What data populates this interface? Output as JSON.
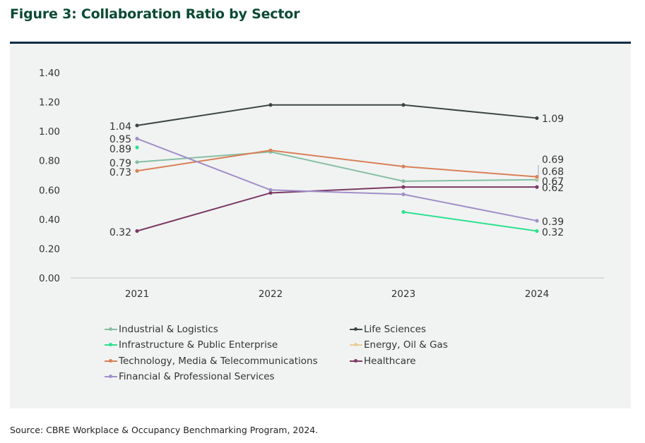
{
  "figure_title": "Figure 3: Collaboration Ratio by Sector",
  "source": "Source: CBRE Workplace & Occupancy Benchmarking Program, 2024.",
  "colors": {
    "Industrial & Logistics": "#86bfa4",
    "Life Sciences": "#3d4644",
    "Infrastructure & Public Enterprise": "#2ee08f",
    "Energy, Oil & Gas": "#e8cd97",
    "Technology, Media & Telecommunications": "#d98057",
    "Healthcare": "#7b3965",
    "Financial & Professional Services": "#a18fc9"
  },
  "chart_data": {
    "type": "line",
    "title": "Collaboration Ratio by Sector",
    "xlabel": "",
    "ylabel": "",
    "categories": [
      "2021",
      "2022",
      "2023",
      "2024"
    ],
    "ylim": [
      0,
      1.4
    ],
    "yticks": [
      "0.00",
      "0.20",
      "0.40",
      "0.60",
      "0.80",
      "1.00",
      "1.20",
      "1.40"
    ],
    "grid": false,
    "legend_position": "bottom",
    "series": [
      {
        "name": "Industrial & Logistics",
        "values": [
          0.79,
          0.86,
          0.66,
          0.67
        ]
      },
      {
        "name": "Life Sciences",
        "values": [
          1.04,
          1.18,
          1.18,
          1.09
        ]
      },
      {
        "name": "Infrastructure & Public Enterprise",
        "values": [
          0.89,
          null,
          0.45,
          0.32
        ]
      },
      {
        "name": "Energy, Oil & Gas",
        "values": [
          null,
          null,
          null,
          0.68
        ]
      },
      {
        "name": "Technology, Media & Telecommunications",
        "values": [
          0.73,
          0.87,
          0.76,
          0.69
        ]
      },
      {
        "name": "Healthcare",
        "values": [
          0.32,
          0.58,
          0.62,
          0.62
        ]
      },
      {
        "name": "Financial & Professional Services",
        "values": [
          0.95,
          0.6,
          0.57,
          0.39
        ]
      }
    ],
    "data_labels": [
      {
        "series": "Life Sciences",
        "x": "2021",
        "text": "1.04"
      },
      {
        "series": "Financial & Professional Services",
        "x": "2021",
        "text": "0.95"
      },
      {
        "series": "Infrastructure & Public Enterprise",
        "x": "2021",
        "text": "0.89"
      },
      {
        "series": "Industrial & Logistics",
        "x": "2021",
        "text": "0.79"
      },
      {
        "series": "Technology, Media & Telecommunications",
        "x": "2021",
        "text": "0.73"
      },
      {
        "series": "Healthcare",
        "x": "2021",
        "text": "0.32"
      },
      {
        "series": "Life Sciences",
        "x": "2024",
        "text": "1.09"
      },
      {
        "series": "Technology, Media & Telecommunications",
        "x": "2024",
        "text": "0.69"
      },
      {
        "series": "Energy, Oil & Gas",
        "x": "2024",
        "text": "0.68"
      },
      {
        "series": "Industrial & Logistics",
        "x": "2024",
        "text": "0.67"
      },
      {
        "series": "Healthcare",
        "x": "2024",
        "text": "0.62"
      },
      {
        "series": "Financial & Professional Services",
        "x": "2024",
        "text": "0.39"
      },
      {
        "series": "Infrastructure & Public Enterprise",
        "x": "2024",
        "text": "0.32"
      }
    ]
  }
}
